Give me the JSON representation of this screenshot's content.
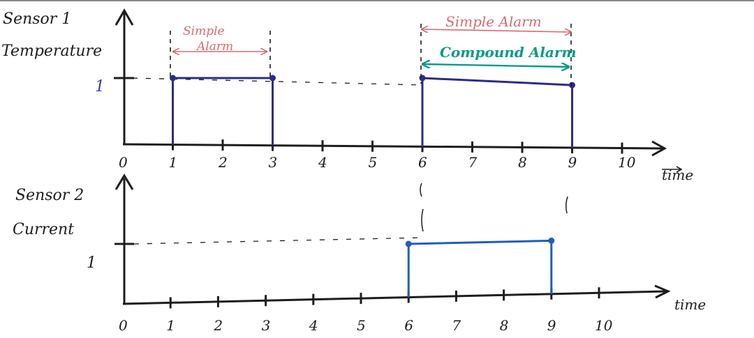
{
  "colors": {
    "ink": "#1d1d1d",
    "signal1": "#2c2c86",
    "signal2": "#1f5fb8",
    "simple_alarm": "#d36b73",
    "compound_alarm": "#0c9b84"
  },
  "sensor1": {
    "name": "Sensor 1",
    "quantity": "Temperature",
    "level_label": "1",
    "time_label": "time",
    "ticks": [
      "0",
      "1",
      "2",
      "3",
      "4",
      "5",
      "6",
      "7",
      "8",
      "9",
      "10"
    ],
    "pulses": [
      {
        "start": 1,
        "end": 3,
        "level": 1
      },
      {
        "start": 6,
        "end": 9,
        "level": 1
      }
    ]
  },
  "sensor2": {
    "name": "Sensor 2",
    "quantity": "Current",
    "level_label": "1",
    "time_label": "time",
    "ticks": [
      "0",
      "1",
      "2",
      "3",
      "4",
      "5",
      "6",
      "7",
      "8",
      "9",
      "10"
    ],
    "pulses": [
      {
        "start": 6,
        "end": 9,
        "level": 1
      }
    ]
  },
  "alarms": {
    "simple_1": {
      "label": "Simple Alarm",
      "start": 1,
      "end": 3
    },
    "simple_2": {
      "label": "Simple Alarm",
      "start": 6,
      "end": 9
    },
    "compound": {
      "label": "Compound Alarm",
      "start": 6,
      "end": 9
    }
  }
}
